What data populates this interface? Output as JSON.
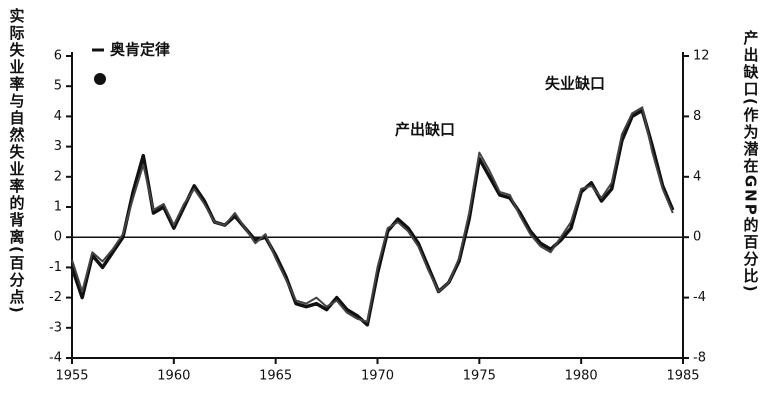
{
  "chart_data": {
    "type": "line",
    "ylabel": "实际失业率与自然失业率的背离(百分点)",
    "y2label": "产出缺口(作为潜在GNP的百分比)",
    "annotation": "奥肯定律",
    "x": [
      1955,
      1955.5,
      1956,
      1956.5,
      1957,
      1957.5,
      1958,
      1958.5,
      1959,
      1959.5,
      1960,
      1960.5,
      1961,
      1961.5,
      1962,
      1962.5,
      1963,
      1963.5,
      1964,
      1964.5,
      1965,
      1965.5,
      1966,
      1966.5,
      1967,
      1967.5,
      1968,
      1968.5,
      1969,
      1969.5,
      1970,
      1970.5,
      1971,
      1971.5,
      1972,
      1972.5,
      1973,
      1973.5,
      1974,
      1974.5,
      1975,
      1975.5,
      1976,
      1976.5,
      1977,
      1977.5,
      1978,
      1978.5,
      1979,
      1979.5,
      1980,
      1980.5,
      1981,
      1981.5,
      1982,
      1982.5,
      1983,
      1983.5,
      1984,
      1984.5
    ],
    "series": [
      {
        "name": "失业缺口",
        "color": "#111111",
        "axis": "y",
        "values": [
          -1.0,
          -2.0,
          -0.6,
          -1.0,
          -0.5,
          0.0,
          1.5,
          2.7,
          0.8,
          1.0,
          0.3,
          1.0,
          1.7,
          1.2,
          0.5,
          0.4,
          0.7,
          0.3,
          -0.1,
          0.0,
          -0.6,
          -1.3,
          -2.2,
          -2.3,
          -2.2,
          -2.4,
          -2.0,
          -2.4,
          -2.6,
          -2.9,
          -1.2,
          0.2,
          0.6,
          0.3,
          -0.2,
          -1.0,
          -1.8,
          -1.5,
          -0.8,
          0.6,
          2.6,
          2.0,
          1.4,
          1.3,
          0.8,
          0.2,
          -0.2,
          -0.4,
          -0.1,
          0.3,
          1.5,
          1.8,
          1.2,
          1.6,
          3.2,
          4.0,
          4.2,
          3.0,
          1.7,
          0.9
        ]
      },
      {
        "name": "产出缺口",
        "color": "#444444",
        "axis": "y2",
        "values": [
          -1.5,
          -3.6,
          -1.0,
          -1.6,
          -0.8,
          0.2,
          2.6,
          4.8,
          1.8,
          2.2,
          0.8,
          2.2,
          3.2,
          2.2,
          1.0,
          0.8,
          1.6,
          0.6,
          -0.4,
          0.2,
          -1.4,
          -2.8,
          -4.2,
          -4.4,
          -4.0,
          -4.6,
          -4.2,
          -5.0,
          -5.4,
          -5.6,
          -2.0,
          0.6,
          1.0,
          0.4,
          -0.6,
          -2.2,
          -3.6,
          -3.0,
          -1.4,
          1.6,
          5.6,
          4.4,
          3.0,
          2.8,
          1.4,
          0.2,
          -0.6,
          -1.0,
          0.0,
          1.0,
          3.2,
          3.4,
          2.6,
          3.6,
          6.8,
          8.2,
          8.6,
          5.6,
          3.2,
          1.6
        ]
      }
    ],
    "xlim": [
      1955,
      1985
    ],
    "xticks": [
      1955,
      1960,
      1965,
      1970,
      1975,
      1980,
      1985
    ],
    "ylim": [
      -4,
      6
    ],
    "yticks": [
      -4,
      -3,
      -2,
      -1,
      0,
      1,
      2,
      3,
      4,
      5,
      6
    ],
    "y2lim": [
      -8,
      12
    ],
    "y2ticks": [
      -8,
      -4,
      0,
      4,
      8,
      12
    ],
    "zero_line": true,
    "grid": false
  }
}
